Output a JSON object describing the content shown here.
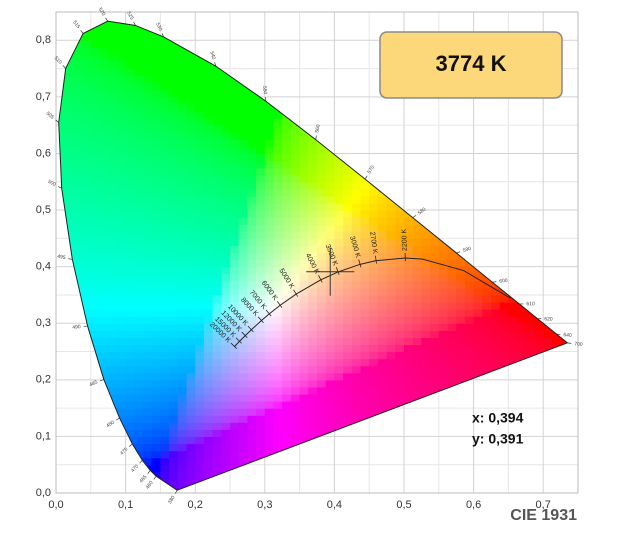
{
  "chart_data": {
    "type": "chromaticity",
    "title": "CIE 1931",
    "xlim": [
      0,
      0.75
    ],
    "ylim": [
      0,
      0.85
    ],
    "xticks": [
      {
        "value": 0,
        "label": "0,0"
      },
      {
        "value": 0.1,
        "label": "0,1"
      },
      {
        "value": 0.2,
        "label": "0,2"
      },
      {
        "value": 0.3,
        "label": "0,3"
      },
      {
        "value": 0.4,
        "label": "0,4"
      },
      {
        "value": 0.5,
        "label": "0,5"
      },
      {
        "value": 0.6,
        "label": "0,6"
      },
      {
        "value": 0.7,
        "label": "0,7"
      }
    ],
    "yticks": [
      {
        "value": 0,
        "label": "0,0"
      },
      {
        "value": 0.1,
        "label": "0,1"
      },
      {
        "value": 0.2,
        "label": "0,2"
      },
      {
        "value": 0.3,
        "label": "0,3"
      },
      {
        "value": 0.4,
        "label": "0,4"
      },
      {
        "value": 0.5,
        "label": "0,5"
      },
      {
        "value": 0.6,
        "label": "0,6"
      },
      {
        "value": 0.7,
        "label": "0,7"
      },
      {
        "value": 0.8,
        "label": "0,8"
      }
    ],
    "xminorticks": [
      0.05,
      0.15,
      0.25,
      0.35,
      0.45,
      0.55,
      0.65
    ],
    "yminorticks": [
      0.05,
      0.15,
      0.25,
      0.35,
      0.45,
      0.55,
      0.65,
      0.75
    ],
    "grid": true,
    "spectral_locus": {
      "wavelengths": [
        380,
        460,
        465,
        470,
        475,
        480,
        485,
        490,
        495,
        500,
        505,
        510,
        515,
        520,
        525,
        530,
        540,
        550,
        560,
        570,
        580,
        590,
        600,
        610,
        620,
        640,
        700
      ],
      "x": [
        0.1741,
        0.144,
        0.1355,
        0.1241,
        0.1096,
        0.0913,
        0.0687,
        0.0454,
        0.0235,
        0.0082,
        0.0039,
        0.0139,
        0.0389,
        0.0743,
        0.1142,
        0.1547,
        0.2296,
        0.3016,
        0.3731,
        0.4441,
        0.5125,
        0.5752,
        0.627,
        0.6658,
        0.6915,
        0.719,
        0.7347
      ],
      "y": [
        0.005,
        0.0297,
        0.0399,
        0.0578,
        0.0868,
        0.1327,
        0.2007,
        0.295,
        0.4127,
        0.5384,
        0.6548,
        0.7502,
        0.812,
        0.8338,
        0.8262,
        0.8059,
        0.7543,
        0.6923,
        0.6245,
        0.5547,
        0.4866,
        0.4242,
        0.3725,
        0.334,
        0.3083,
        0.2809,
        0.2653
      ]
    },
    "planckian_locus": {
      "x": [
        0.6528,
        0.5857,
        0.5267,
        0.5018,
        0.4599,
        0.4369,
        0.4053,
        0.3805,
        0.3451,
        0.3221,
        0.3064,
        0.2952,
        0.2807,
        0.2719,
        0.2637,
        0.2565
      ],
      "y": [
        0.3444,
        0.3931,
        0.4133,
        0.4153,
        0.4106,
        0.4041,
        0.3907,
        0.3768,
        0.3516,
        0.3318,
        0.3166,
        0.3048,
        0.2884,
        0.2781,
        0.2681,
        0.2589
      ],
      "labels": [
        null,
        null,
        null,
        "2200 K",
        "2700 K",
        "3000 K",
        "3500 K",
        "4000 K",
        "5000 K",
        "6000 K",
        "7000 K",
        "8000 K",
        "10000 K",
        "12000 K",
        "15000 K",
        "20000 K"
      ]
    },
    "point": {
      "x": 0.394,
      "y": 0.391,
      "cct_label": "3774 K",
      "x_label": "x: 0,394",
      "y_label": "y: 0,391"
    }
  }
}
